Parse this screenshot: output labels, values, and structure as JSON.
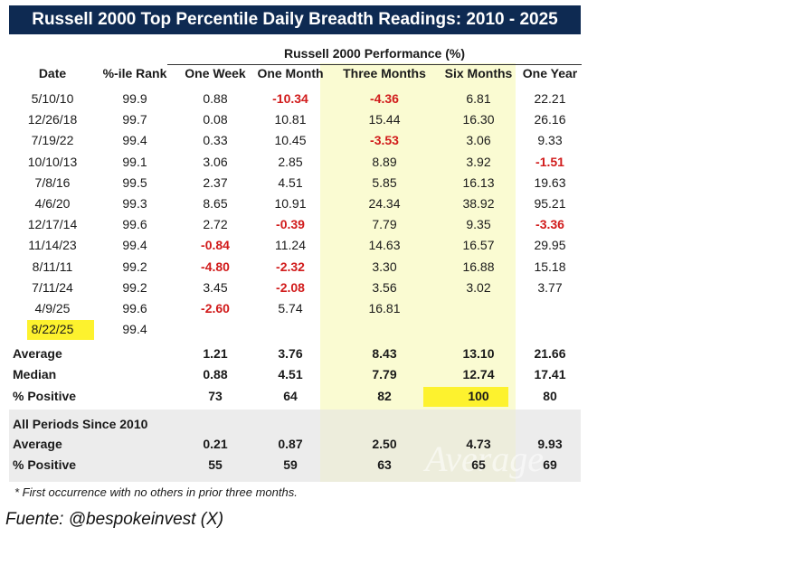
{
  "title": "Russell 2000 Top Percentile Daily Breadth Readings: 2010 - 2025",
  "perf_header": "Russell 2000 Performance (%)",
  "columns": [
    "Date",
    "%-ile Rank",
    "One Week",
    "One Month",
    "Three Months",
    "Six Months",
    "One Year"
  ],
  "rows": [
    [
      "5/10/10",
      "99.9",
      "0.88",
      "-10.34",
      "-4.36",
      "6.81",
      "22.21"
    ],
    [
      "12/26/18",
      "99.7",
      "0.08",
      "10.81",
      "15.44",
      "16.30",
      "26.16"
    ],
    [
      "7/19/22",
      "99.4",
      "0.33",
      "10.45",
      "-3.53",
      "3.06",
      "9.33"
    ],
    [
      "10/10/13",
      "99.1",
      "3.06",
      "2.85",
      "8.89",
      "3.92",
      "-1.51"
    ],
    [
      "7/8/16",
      "99.5",
      "2.37",
      "4.51",
      "5.85",
      "16.13",
      "19.63"
    ],
    [
      "4/6/20",
      "99.3",
      "8.65",
      "10.91",
      "24.34",
      "38.92",
      "95.21"
    ],
    [
      "12/17/14",
      "99.6",
      "2.72",
      "-0.39",
      "7.79",
      "9.35",
      "-3.36"
    ],
    [
      "11/14/23",
      "99.4",
      "-0.84",
      "11.24",
      "14.63",
      "16.57",
      "29.95"
    ],
    [
      "8/11/11",
      "99.2",
      "-4.80",
      "-2.32",
      "3.30",
      "16.88",
      "15.18"
    ],
    [
      "7/11/24",
      "99.2",
      "3.45",
      "-2.08",
      "3.56",
      "3.02",
      "3.77"
    ],
    [
      "4/9/25",
      "99.6",
      "-2.60",
      "5.74",
      "16.81",
      "",
      ""
    ],
    [
      "8/22/25",
      "99.4",
      "",
      "",
      "",
      "",
      ""
    ]
  ],
  "summary": [
    {
      "label": "Average",
      "values": [
        "1.21",
        "3.76",
        "8.43",
        "13.10",
        "21.66"
      ]
    },
    {
      "label": "Median",
      "values": [
        "0.88",
        "4.51",
        "7.79",
        "12.74",
        "17.41"
      ]
    },
    {
      "label": "% Positive",
      "values": [
        "73",
        "64",
        "82",
        "100",
        "80"
      ]
    }
  ],
  "all_periods": {
    "title": "All Periods Since 2010",
    "rows": [
      {
        "label": "Average",
        "values": [
          "0.21",
          "0.87",
          "2.50",
          "4.73",
          "9.93"
        ]
      },
      {
        "label": "% Positive",
        "values": [
          "55",
          "59",
          "63",
          "65",
          "69"
        ]
      }
    ]
  },
  "watermark": "Average",
  "footnote": "* First occurrence with no others in prior three months.",
  "source": "Fuente: @bespokeinvest (X)",
  "colors": {
    "title_bg": "#0e2a52",
    "negative": "#d11b1b",
    "highlight": "#fdf22e",
    "three_month_shade": "#fafbd2",
    "gray_block": "#ececec"
  }
}
